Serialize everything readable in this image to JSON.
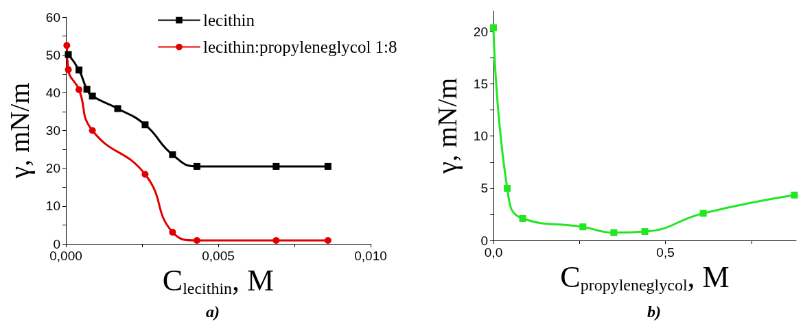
{
  "chart_data": [
    {
      "type": "line",
      "xlabel": "C$_{lecithin}$, M",
      "ylabel": "γ, mN/m",
      "annotations": [
        "a)"
      ],
      "legend": "top right",
      "grid": false,
      "line_style": "solid",
      "xlim": [
        0,
        0.01
      ],
      "xticks": [
        {
          "value": 0,
          "label": "0,000"
        },
        {
          "value": 0.0025,
          "label": null
        },
        {
          "value": 0.005,
          "label": "0,005"
        },
        {
          "value": 0.0075,
          "label": null
        },
        {
          "value": 0.01,
          "label": "0,010"
        }
      ],
      "ylim": [
        0,
        60
      ],
      "yticks": [
        0,
        {
          "value": 5,
          "label": null
        },
        10,
        {
          "value": 15,
          "label": null
        },
        20,
        {
          "value": 25,
          "label": null
        },
        30,
        {
          "value": 35,
          "label": null
        },
        40,
        {
          "value": 45,
          "label": null
        },
        50,
        {
          "value": 55,
          "label": null
        },
        60
      ],
      "series": [
        {
          "name": "lecithin",
          "color": "#000000",
          "marker": "square",
          "x": [
            8e-05,
            0.00043,
            0.00069,
            0.00087,
            0.0017,
            0.0026,
            0.0035,
            0.0043,
            0.0069,
            0.0086
          ],
          "values": [
            50.1,
            46,
            40.9,
            39.1,
            35.8,
            31.5,
            23.6,
            20.5,
            20.5,
            20.5
          ]
        },
        {
          "name": "lecithin:propyleneglycol 1:8",
          "color": "#e00000",
          "marker": "circle",
          "x": [
            3e-05,
            8e-05,
            0.00043,
            0.00087,
            0.0026,
            0.0035,
            0.0043,
            0.0069,
            0.0086
          ],
          "values": [
            52.5,
            46.1,
            40.8,
            30,
            18.4,
            3.1,
            0.9,
            0.9,
            0.9
          ]
        }
      ]
    },
    {
      "type": "line",
      "xlabel": "C$_{propyleneglycol}$, M",
      "ylabel": "γ, mN/m",
      "annotations": [
        "b)"
      ],
      "legend": false,
      "grid": false,
      "marker": "square",
      "line_style": "solid",
      "xlim": [
        0,
        0.88
      ],
      "xticks": [
        {
          "value": 0,
          "label": "0,0"
        },
        {
          "value": 0.25,
          "label": null
        },
        {
          "value": 0.5,
          "label": "0,5"
        },
        {
          "value": 0.75,
          "label": null
        }
      ],
      "ylim": [
        0,
        22
      ],
      "yticks": [
        0,
        {
          "value": 2.5,
          "label": null
        },
        5,
        {
          "value": 7.5,
          "label": null
        },
        10,
        {
          "value": 12.5,
          "label": null
        },
        15,
        {
          "value": 17.5,
          "label": null
        },
        20
      ],
      "series": [
        {
          "color": "#22e622",
          "x": [
            0.0,
            0.04,
            0.085,
            0.26,
            0.35,
            0.44,
            0.61,
            0.875
          ],
          "values": [
            20.4,
            5.0,
            2.1,
            1.3,
            0.75,
            0.85,
            2.6,
            4.35
          ]
        }
      ]
    }
  ]
}
